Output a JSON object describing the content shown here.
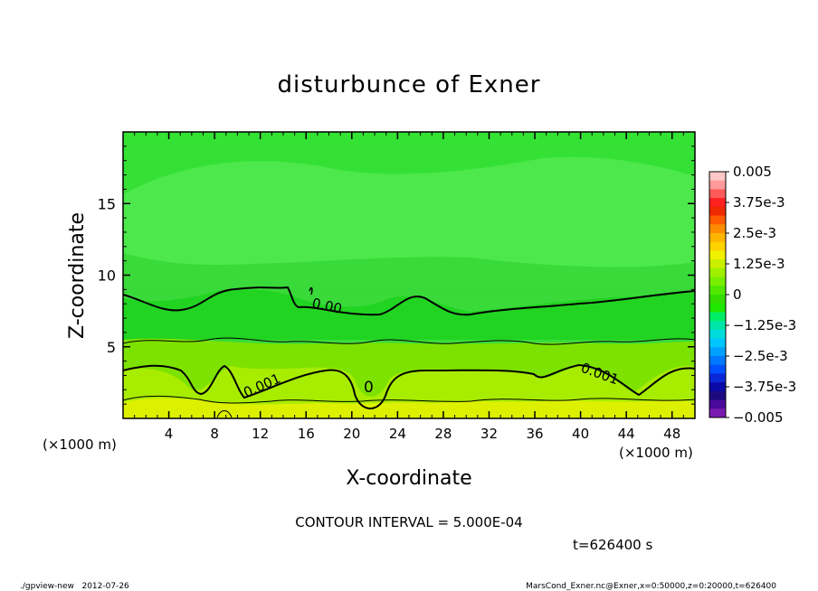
{
  "chart_data": {
    "type": "contour",
    "title": "disturbunce of Exner",
    "xlabel": "X-coordinate",
    "ylabel": "Z-coordinate",
    "x_unit": "(×1000 m)",
    "y_unit": "(×1000 m)",
    "xlim": [
      0,
      50
    ],
    "ylim": [
      0,
      20
    ],
    "x_ticks": [
      4,
      8,
      12,
      16,
      20,
      24,
      28,
      32,
      36,
      40,
      44,
      48
    ],
    "y_ticks": [
      5,
      10,
      15
    ],
    "colorbar": {
      "ticks": [
        "0.005",
        "3.75e-3",
        "2.5e-3",
        "1.25e-3",
        "0",
        "-1.25e-3",
        "-2.5e-3",
        "-3.75e-3",
        "-0.005"
      ],
      "colors": [
        "#ffc8c8",
        "#ff9a9a",
        "#ff5a5a",
        "#ff2020",
        "#ee2a00",
        "#ff5a00",
        "#ff8c00",
        "#ffb400",
        "#ffd200",
        "#f0f000",
        "#c8f000",
        "#9ef000",
        "#78ee00",
        "#50e800",
        "#33dd00",
        "#20e800",
        "#00ee66",
        "#00e6a8",
        "#00dcdc",
        "#00c6ff",
        "#00a0ff",
        "#0078ff",
        "#0050ff",
        "#0a28d8",
        "#0a0aa8",
        "#1e0a80",
        "#4a0a9a",
        "#7a1ab0"
      ]
    },
    "contour_labels": [
      "0.00",
      "0.001",
      "0.001",
      "0.001",
      "0"
    ],
    "contour_interval": "CONTOUR INTERVAL = 5.000E-04",
    "time": "t=626400 s"
  },
  "footer": {
    "left": "./gpview-new   2012-07-26",
    "right": "MarsCond_Exner.nc@Exner,x=0:50000,z=0:20000,t=626400"
  }
}
